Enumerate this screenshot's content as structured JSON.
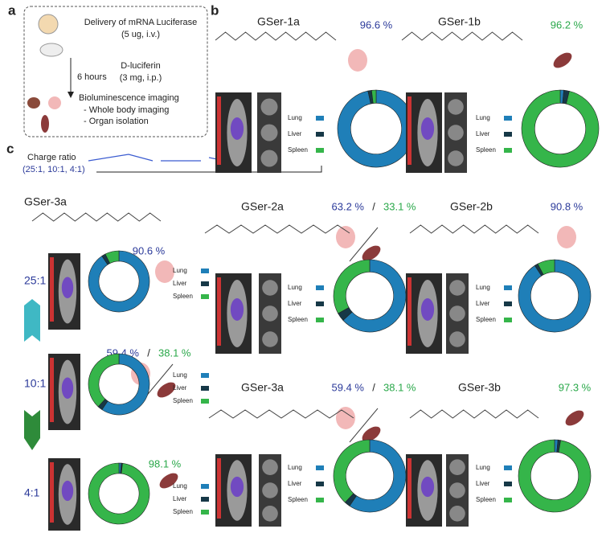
{
  "panel_labels": [
    "a",
    "b",
    "c"
  ],
  "panel_a": {
    "steps": [
      "Delivery of mRNA Luciferase",
      "(5 ug, i.v.)",
      "6 hours",
      "D-luciferin",
      "(3 mg, i.p.)",
      "Bioluminescence imaging",
      "- Whole body imaging",
      "- Organ isolation"
    ]
  },
  "panel_c": {
    "charge_ratio_title": "Charge ratio",
    "charge_ratios": "(25:1, 10:1, 4:1)",
    "polymer": "GSer-3a"
  },
  "legend": [
    "Lung",
    "Liver",
    "Spleen"
  ],
  "colors": [
    "#1f7fb8",
    "#163847",
    "#35b54a"
  ],
  "label_colors": {
    "lung": "#2b3a9a",
    "spleen": "#2aa84a"
  },
  "percent_separator": "/",
  "donuts": [
    {
      "name": "GSer-1a",
      "percent_labels": [
        "96.6 %"
      ],
      "label_organs": [
        "lung"
      ],
      "values": [
        96.6,
        1.5,
        1.9
      ]
    },
    {
      "name": "GSer-1b",
      "percent_labels": [
        "96.2 %"
      ],
      "label_organs": [
        "spleen"
      ],
      "values": [
        1.5,
        2.3,
        96.2
      ]
    },
    {
      "name": "GSer-2a",
      "percent_labels": [
        "63.2 %",
        "33.1 %"
      ],
      "label_organs": [
        "lung",
        "spleen"
      ],
      "values": [
        63.2,
        3.7,
        33.1
      ]
    },
    {
      "name": "GSer-2b",
      "percent_labels": [
        "90.8 %"
      ],
      "label_organs": [
        "lung"
      ],
      "values": [
        90.8,
        1.5,
        7.7
      ]
    },
    {
      "name": "GSer-3a",
      "percent_labels": [
        "59.4 %",
        "38.1 %"
      ],
      "label_organs": [
        "lung",
        "spleen"
      ],
      "values": [
        59.4,
        2.5,
        38.1
      ]
    },
    {
      "name": "GSer-3b",
      "percent_labels": [
        "97.3 %"
      ],
      "label_organs": [
        "spleen"
      ],
      "values": [
        1.5,
        1.2,
        97.3
      ]
    },
    {
      "name": "25:1",
      "percent_labels": [
        "90.6 %"
      ],
      "label_organs": [
        "lung"
      ],
      "values": [
        90.6,
        2.0,
        7.4
      ]
    },
    {
      "name": "10:1",
      "percent_labels": [
        "59.4 %",
        "38.1 %"
      ],
      "label_organs": [
        "lung",
        "spleen"
      ],
      "values": [
        59.4,
        2.5,
        38.1
      ]
    },
    {
      "name": "4:1",
      "percent_labels": [
        "98.1 %"
      ],
      "label_organs": [
        "spleen"
      ],
      "values": [
        1.2,
        0.7,
        98.1
      ]
    }
  ]
}
